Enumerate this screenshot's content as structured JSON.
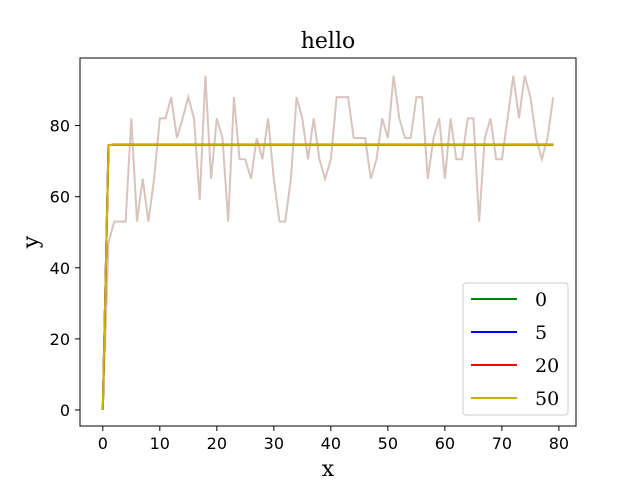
{
  "chart_data": {
    "type": "line",
    "title": "hello",
    "xlabel": "x",
    "ylabel": "y",
    "xlim": [
      -4,
      83
    ],
    "ylim": [
      -4.5,
      99
    ],
    "xticks": [
      0,
      10,
      20,
      30,
      40,
      50,
      60,
      70,
      80
    ],
    "yticks": [
      0,
      20,
      40,
      60,
      80
    ],
    "grid": false,
    "legend_position": "bottom-right",
    "raw_series": {
      "color": "#d8c4bd",
      "x": [
        0,
        1,
        2,
        3,
        4,
        5,
        6,
        7,
        8,
        9,
        10,
        11,
        12,
        13,
        14,
        15,
        16,
        17,
        18,
        19,
        20,
        21,
        22,
        23,
        24,
        25,
        26,
        27,
        28,
        29,
        30,
        31,
        32,
        33,
        34,
        35,
        36,
        37,
        38,
        39,
        40,
        41,
        42,
        43,
        44,
        45,
        46,
        47,
        48,
        49,
        50,
        51,
        52,
        53,
        54,
        55,
        56,
        57,
        58,
        59,
        60,
        61,
        62,
        63,
        64,
        65,
        66,
        67,
        68,
        69,
        70,
        71,
        72,
        73,
        74,
        75,
        76,
        77,
        78,
        79
      ],
      "y": [
        0,
        47,
        53,
        53,
        53,
        82,
        53,
        65,
        53,
        65,
        82,
        82,
        88,
        76.5,
        82,
        88,
        82,
        59,
        94,
        65,
        82,
        76.5,
        53,
        88,
        70.5,
        70.5,
        65,
        76.5,
        70.5,
        82,
        65,
        53,
        53,
        65,
        88,
        82,
        70.5,
        82,
        70.5,
        65,
        70.5,
        88,
        88,
        88,
        76.5,
        76.5,
        76.5,
        65,
        70.5,
        82,
        76.5,
        94,
        82,
        76.5,
        76.5,
        88,
        88,
        65,
        76.5,
        82,
        65,
        82,
        70.5,
        70.5,
        82,
        82,
        53,
        76.5,
        82,
        70.5,
        70.5,
        82,
        94,
        82,
        94,
        88,
        76.5,
        70.5,
        76.5,
        88
      ]
    },
    "series": [
      {
        "name": "0",
        "color": "#008000",
        "x": [
          0,
          1,
          2,
          79
        ],
        "y": [
          0,
          74.5,
          74.6,
          74.6
        ]
      },
      {
        "name": "5",
        "color": "#0000ff",
        "x": [
          0,
          1,
          2,
          79
        ],
        "y": [
          0,
          74.5,
          74.6,
          74.6
        ]
      },
      {
        "name": "20",
        "color": "#ff0000",
        "x": [
          0,
          1,
          2,
          79
        ],
        "y": [
          0,
          74.5,
          74.6,
          74.6
        ]
      },
      {
        "name": "50",
        "color": "#c8b400",
        "x": [
          0,
          1,
          2,
          79
        ],
        "y": [
          0,
          74.5,
          74.6,
          74.6
        ]
      }
    ]
  }
}
